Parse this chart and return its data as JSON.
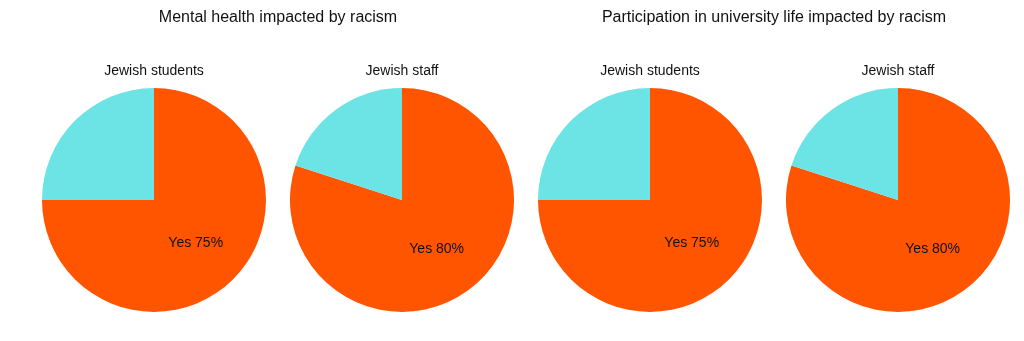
{
  "chart_data": [
    {
      "type": "pie",
      "title": "Mental health impacted by racism",
      "subtitle": "Jewish students",
      "categories": [
        null,
        null
      ],
      "values": [
        75,
        25
      ],
      "colors": [
        "#ff5500",
        "#6ce3e5"
      ],
      "value_labels": [
        "Yes 75%",
        null
      ]
    },
    {
      "type": "pie",
      "subtitle": "Jewish staff",
      "categories": [
        null,
        null
      ],
      "values": [
        80,
        20
      ],
      "colors": [
        "#ff5500",
        "#6ce3e5"
      ],
      "value_labels": [
        "Yes 80%",
        null
      ]
    },
    {
      "type": "pie",
      "title": "Participation in university life impacted by racism",
      "subtitle": "Jewish students",
      "categories": [
        null,
        null
      ],
      "values": [
        75,
        25
      ],
      "colors": [
        "#ff5500",
        "#6ce3e5"
      ],
      "value_labels": [
        "Yes 75%",
        null
      ]
    },
    {
      "type": "pie",
      "subtitle": "Jewish staff",
      "categories": [
        null,
        null
      ],
      "values": [
        80,
        20
      ],
      "colors": [
        "#ff5500",
        "#6ce3e5"
      ],
      "value_labels": [
        "Yes 80%",
        null
      ]
    }
  ]
}
